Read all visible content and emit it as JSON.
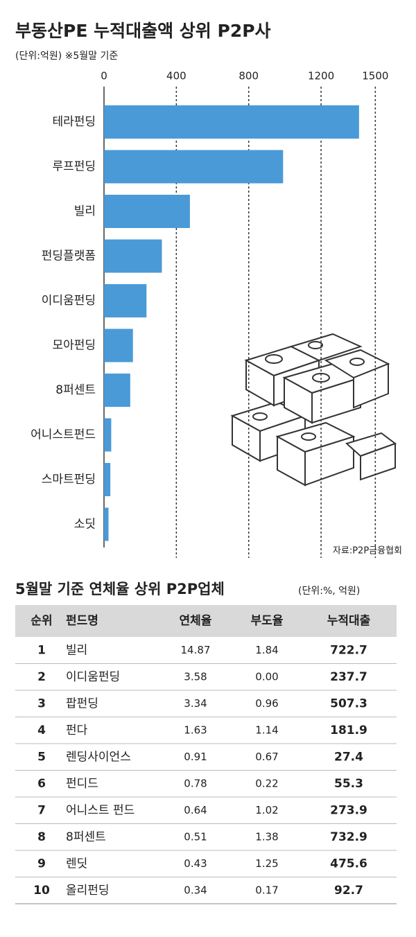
{
  "chart_data": {
    "type": "hbar",
    "title": "부동산PE 누적대출액 상위 P2P사",
    "subtitle": "(단위:억원)  ※5월말 기준",
    "categories": [
      "테라펀딩",
      "루프펀딩",
      "빌리",
      "펀딩플랫폼",
      "이디움펀딩",
      "모아펀딩",
      "8퍼센트",
      "어니스트펀드",
      "스마트펀딩",
      "소딧"
    ],
    "values": [
      1410,
      990,
      475,
      320,
      235,
      160,
      145,
      40,
      35,
      25
    ],
    "color": "#4a9ad8",
    "xlim": [
      0,
      1560
    ],
    "xticks": [
      0,
      400,
      800,
      1200,
      1500
    ],
    "grid": true,
    "source": "자료:P2P금융협회"
  },
  "table": {
    "title": "5월말 기준 연체율 상위 P2P업체",
    "unit": "(단위:%, 억원)",
    "header": [
      "순위",
      "펀드명",
      "연체율",
      "부도율",
      "누적대출"
    ],
    "rows": [
      [
        "1",
        "빌리",
        "14.87",
        "1.84",
        "722.7"
      ],
      [
        "2",
        "이디움펀딩",
        "3.58",
        "0.00",
        "237.7"
      ],
      [
        "3",
        "팝펀딩",
        "3.34",
        "0.96",
        "507.3"
      ],
      [
        "4",
        "펀다",
        "1.63",
        "1.14",
        "181.9"
      ],
      [
        "5",
        "렌딩사이언스",
        "0.91",
        "0.67",
        "27.4"
      ],
      [
        "6",
        "펀디드",
        "0.78",
        "0.22",
        "55.3"
      ],
      [
        "7",
        "어니스트 펀드",
        "0.64",
        "1.02",
        "273.9"
      ],
      [
        "8",
        "8퍼센트",
        "0.51",
        "1.38",
        "732.9"
      ],
      [
        "9",
        "렌딧",
        "0.43",
        "1.25",
        "475.6"
      ],
      [
        "10",
        "올리펀딩",
        "0.34",
        "0.17",
        "92.7"
      ]
    ]
  }
}
